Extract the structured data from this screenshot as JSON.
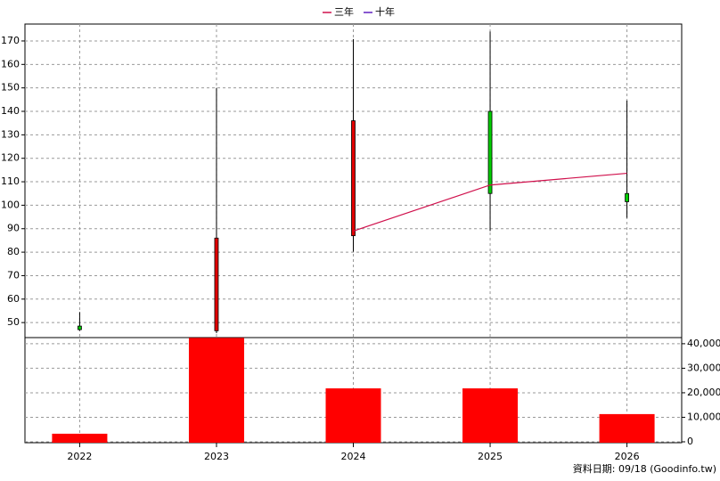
{
  "chart_data": {
    "type": "candlestick",
    "categories": [
      "2022",
      "2023",
      "2024",
      "2025",
      "2026"
    ],
    "open": [
      48.5,
      46.5,
      87,
      140,
      105
    ],
    "high": [
      54.5,
      150,
      170.8,
      174,
      144.6
    ],
    "low": [
      46.5,
      45.5,
      80.2,
      89,
      94.6
    ],
    "close": [
      47,
      86,
      136,
      105,
      101.5
    ],
    "up_color": "#e00000",
    "down_color": "#00cc00",
    "lines": [
      {
        "name": "三年",
        "color": "#d0104c",
        "values": [
          null,
          null,
          89,
          108.6,
          113.6
        ]
      },
      {
        "name": "十年",
        "color": "#6020c0",
        "values": [
          null,
          null,
          null,
          null,
          null
        ]
      }
    ],
    "ylim": [
      43.6,
      177.2
    ],
    "yticks": [
      50,
      60,
      70,
      80,
      90,
      100,
      110,
      120,
      130,
      140,
      150,
      160,
      170
    ],
    "volume": {
      "type": "bar",
      "color": "#ff0000",
      "values": [
        3300,
        42400,
        21800,
        21800,
        11300
      ],
      "ylim": [
        0,
        42500
      ],
      "yticks": [
        0,
        {
          "value": 10000,
          "label": "10,000"
        },
        {
          "value": 20000,
          "label": "20,000"
        },
        {
          "value": 30000,
          "label": "30,000"
        },
        {
          "value": 40000,
          "label": "40,000"
        }
      ]
    },
    "grid": true,
    "footnote": "資料日期: 09/18 (Goodinfo.tw)"
  }
}
